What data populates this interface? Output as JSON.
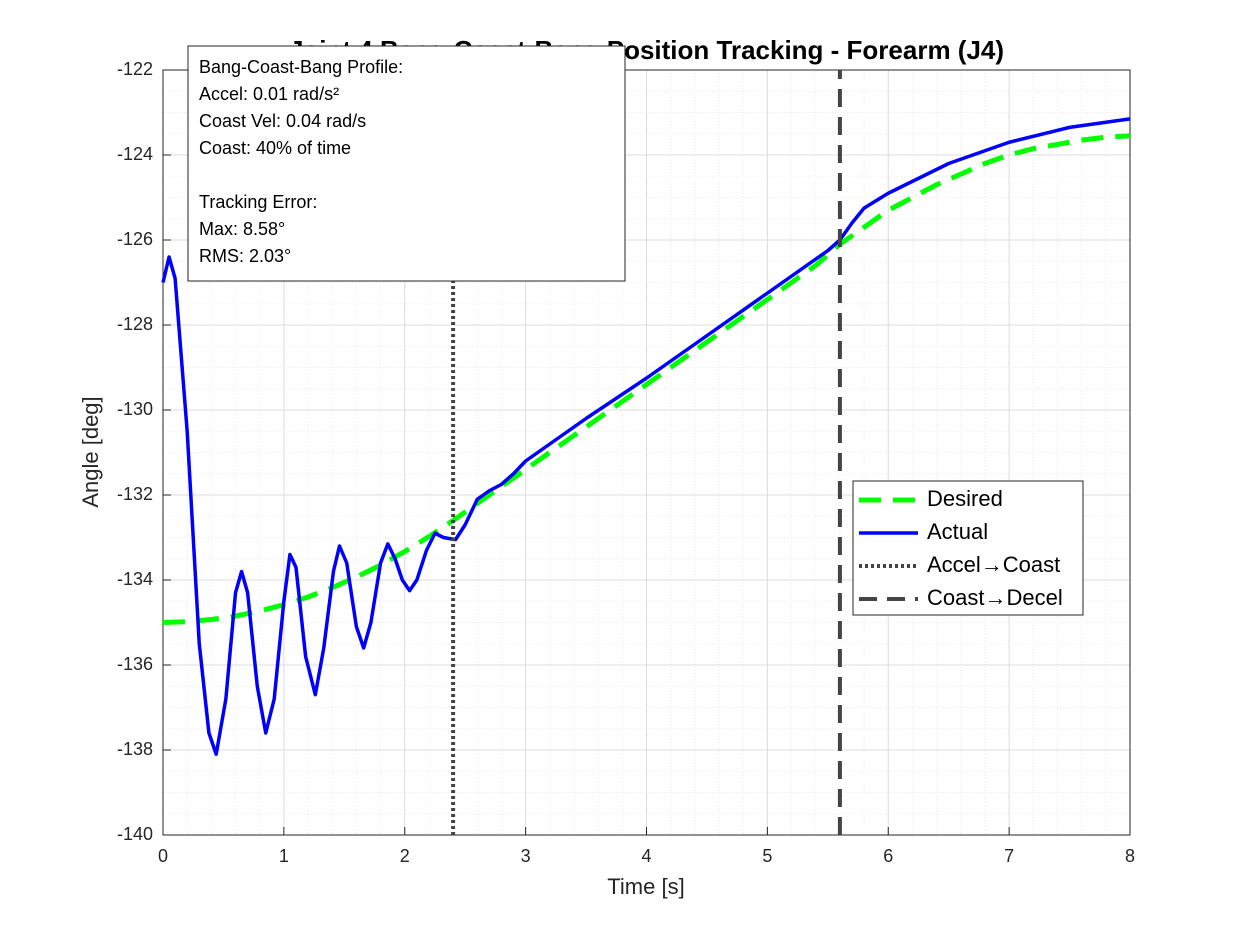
{
  "chart_data": {
    "type": "line",
    "title": "Joint 4 Bang-Coast-Bang Position Tracking - Forearm (J4)",
    "xlabel": "Time [s]",
    "ylabel": "Angle [deg]",
    "xlim": [
      0,
      8
    ],
    "ylim": [
      -140,
      -122
    ],
    "xticks": [
      0,
      1,
      2,
      3,
      4,
      5,
      6,
      7,
      8
    ],
    "yticks": [
      -140,
      -138,
      -136,
      -134,
      -132,
      -130,
      -128,
      -126,
      -124,
      -122
    ],
    "grid": true,
    "minor_grid": true,
    "legend_location": "east",
    "annotation": [
      [
        "Bang-Coast-Bang Profile:",
        "Accel: 0.01 rad/s²",
        "Coast Vel: 0.04 rad/s",
        "Coast: 40% of time"
      ],
      [
        "Tracking Error:",
        "Max: 8.58°",
        "RMS: 2.03°"
      ]
    ],
    "series": [
      {
        "name": "Desired",
        "color": "#00ff00",
        "style": "dashed",
        "x": [
          0,
          0.2,
          0.4,
          0.6,
          0.8,
          1.0,
          1.2,
          1.4,
          1.6,
          1.8,
          2.0,
          2.2,
          2.4,
          2.6,
          2.8,
          3.0,
          3.2,
          3.4,
          3.6,
          3.8,
          4.0,
          4.2,
          4.4,
          4.6,
          4.8,
          5.0,
          5.2,
          5.4,
          5.6,
          5.8,
          6.0,
          6.2,
          6.4,
          6.6,
          6.8,
          7.0,
          7.2,
          7.4,
          7.6,
          7.8,
          8.0
        ],
        "values": [
          -135,
          -134.98,
          -134.93,
          -134.85,
          -134.73,
          -134.58,
          -134.4,
          -134.18,
          -133.93,
          -133.65,
          -133.33,
          -132.98,
          -132.6,
          -132.2,
          -131.8,
          -131.4,
          -131.0,
          -130.6,
          -130.2,
          -129.8,
          -129.4,
          -129.0,
          -128.6,
          -128.2,
          -127.8,
          -127.4,
          -127.0,
          -126.6,
          -126.1,
          -125.7,
          -125.3,
          -125.0,
          -124.7,
          -124.45,
          -124.2,
          -124.0,
          -123.85,
          -123.75,
          -123.65,
          -123.58,
          -123.55
        ]
      },
      {
        "name": "Actual",
        "color": "#0000ff",
        "style": "solid",
        "x": [
          0,
          0.05,
          0.1,
          0.2,
          0.3,
          0.38,
          0.44,
          0.52,
          0.6,
          0.65,
          0.7,
          0.78,
          0.85,
          0.92,
          1.0,
          1.05,
          1.1,
          1.18,
          1.26,
          1.33,
          1.41,
          1.46,
          1.52,
          1.6,
          1.66,
          1.72,
          1.8,
          1.86,
          1.92,
          1.98,
          2.04,
          2.1,
          2.18,
          2.25,
          2.32,
          2.42,
          2.5,
          2.6,
          2.7,
          2.8,
          2.9,
          3.0,
          3.5,
          4.0,
          4.5,
          5.0,
          5.5,
          5.6,
          5.7,
          5.8,
          6.0,
          6.5,
          7.0,
          7.5,
          8.0
        ],
        "values": [
          -127.0,
          -126.4,
          -126.9,
          -130.5,
          -135.5,
          -137.6,
          -138.1,
          -136.8,
          -134.3,
          -133.8,
          -134.3,
          -136.5,
          -137.6,
          -136.8,
          -134.5,
          -133.4,
          -133.7,
          -135.8,
          -136.7,
          -135.6,
          -133.8,
          -133.2,
          -133.6,
          -135.1,
          -135.6,
          -135.0,
          -133.6,
          -133.15,
          -133.5,
          -134.0,
          -134.25,
          -134.0,
          -133.3,
          -132.9,
          -133.0,
          -133.05,
          -132.7,
          -132.1,
          -131.9,
          -131.75,
          -131.5,
          -131.2,
          -130.2,
          -129.25,
          -128.25,
          -127.25,
          -126.25,
          -126.0,
          -125.6,
          -125.25,
          -124.9,
          -124.2,
          -123.7,
          -123.35,
          -123.15
        ]
      },
      {
        "name": "Accel→Coast",
        "color": "#444444",
        "style": "dotted",
        "x": [
          2.4,
          2.4
        ],
        "values": [
          -140,
          -122
        ]
      },
      {
        "name": "Coast→Decel",
        "color": "#444444",
        "style": "dash",
        "x": [
          5.6,
          5.6
        ],
        "values": [
          -140,
          -122
        ]
      }
    ]
  }
}
